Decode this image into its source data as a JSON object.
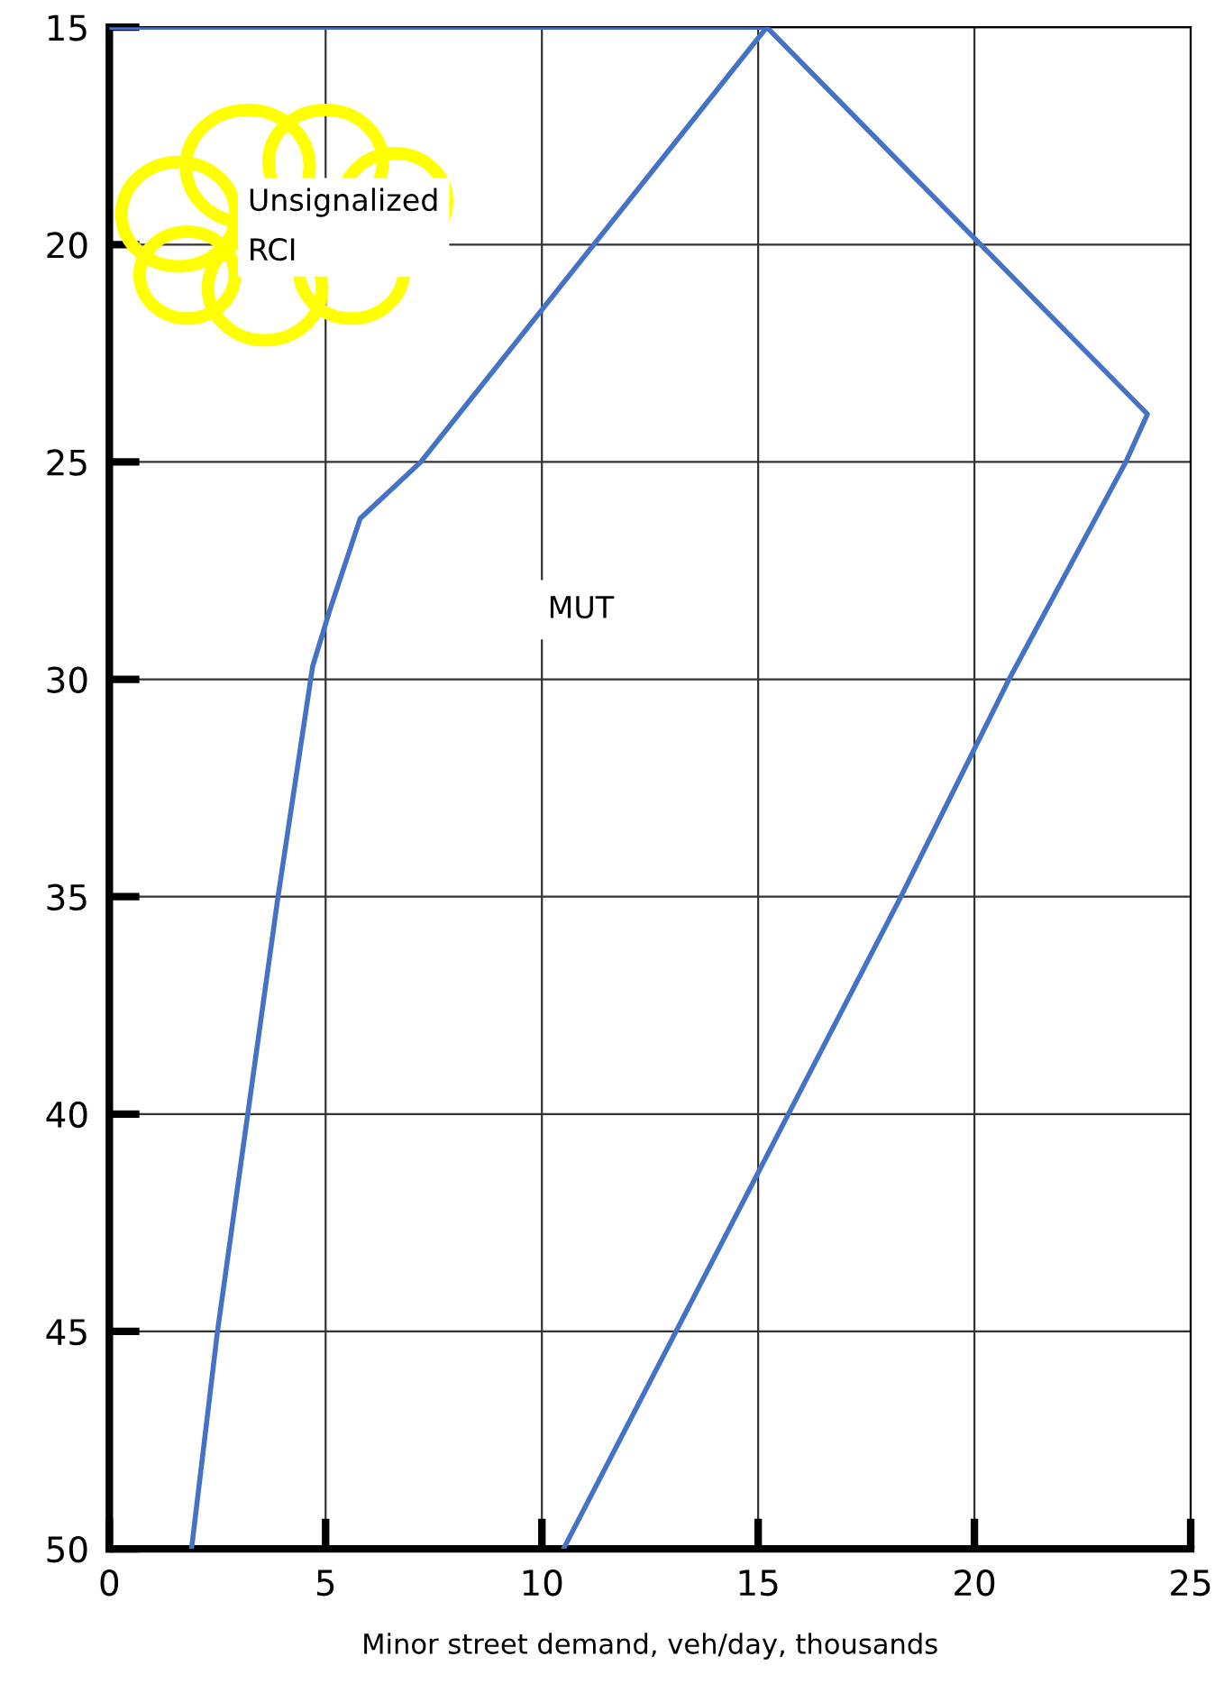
{
  "chart_data": {
    "type": "line",
    "xlabel": "Minor street demand, veh/day, thousands",
    "series": [
      {
        "color": "#4472c4",
        "x": [
          0,
          15.2,
          11.2,
          7.2,
          5.8,
          5.1,
          4.7,
          3.9,
          3.2,
          2.5,
          1.9
        ],
        "values": [
          15,
          15,
          20,
          25,
          26.3,
          28.4,
          29.7,
          35,
          40,
          45,
          50
        ]
      },
      {
        "color": "#4472c4",
        "x": [
          15.2,
          24.0,
          23.5,
          20.8,
          18.3,
          15.7,
          13.1,
          10.5
        ],
        "values": [
          15,
          23.9,
          25,
          30,
          35,
          40,
          45,
          50
        ]
      }
    ],
    "xlim": [
      0,
      25
    ],
    "xticks": [
      0,
      5,
      10,
      15,
      20,
      25
    ],
    "ylim": [
      50,
      15
    ],
    "yticks": [
      15,
      20,
      25,
      30,
      35,
      40,
      45,
      50
    ],
    "grid": true,
    "legend": false,
    "marker": "none",
    "line_style": "solid",
    "annotations": [
      "Unsignalized\nRCI",
      "MUT"
    ]
  }
}
